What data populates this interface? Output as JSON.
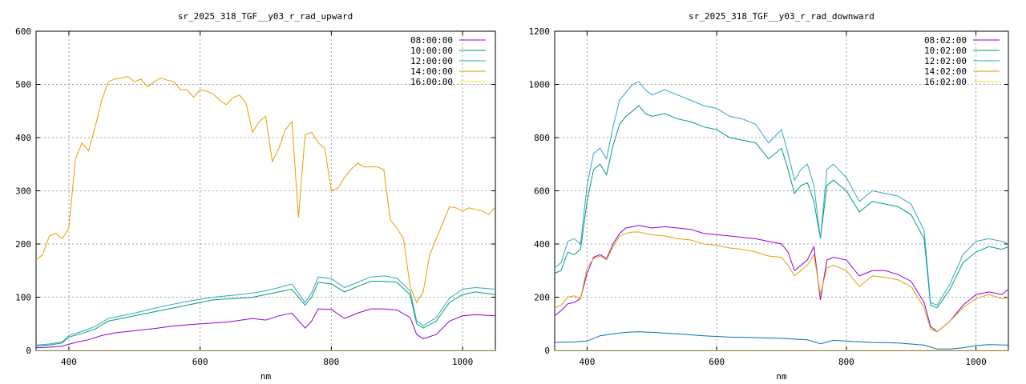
{
  "chart_data": [
    {
      "type": "line",
      "title": "sr_2025_318_TGF__y03_r_rad_upward",
      "xlabel": "nm",
      "ylabel": "",
      "xlim": [
        350,
        1050
      ],
      "ylim": [
        0,
        600
      ],
      "xticks": [
        400,
        600,
        800,
        1000
      ],
      "yticks": [
        0,
        100,
        200,
        300,
        400,
        500,
        600
      ],
      "grid": true,
      "legend_position": "top-right",
      "series": [
        {
          "name": "08:00:00",
          "color": "#9400d3",
          "x": [
            350,
            370,
            390,
            410,
            430,
            450,
            470,
            500,
            530,
            560,
            600,
            640,
            680,
            700,
            720,
            740,
            760,
            770,
            780,
            800,
            820,
            840,
            860,
            880,
            900,
            920,
            930,
            940,
            960,
            980,
            1000,
            1020,
            1050
          ],
          "y": [
            5,
            6,
            8,
            15,
            20,
            28,
            33,
            37,
            41,
            46,
            50,
            53,
            60,
            57,
            65,
            70,
            42,
            55,
            78,
            77,
            60,
            70,
            78,
            78,
            76,
            62,
            30,
            22,
            30,
            55,
            65,
            67,
            65
          ]
        },
        {
          "name": "10:00:00",
          "color": "#009e73",
          "x": [
            350,
            370,
            390,
            400,
            420,
            440,
            460,
            500,
            540,
            580,
            620,
            660,
            680,
            700,
            720,
            740,
            760,
            770,
            780,
            800,
            820,
            840,
            860,
            880,
            900,
            920,
            930,
            940,
            960,
            980,
            1000,
            1020,
            1050
          ],
          "y": [
            8,
            10,
            14,
            25,
            32,
            40,
            55,
            65,
            75,
            85,
            95,
            98,
            100,
            105,
            110,
            115,
            85,
            100,
            128,
            125,
            110,
            120,
            130,
            130,
            128,
            105,
            50,
            42,
            55,
            90,
            105,
            110,
            105
          ]
        },
        {
          "name": "12:00:00",
          "color": "#35a5c7",
          "x": [
            350,
            370,
            390,
            400,
            420,
            440,
            460,
            500,
            540,
            580,
            620,
            660,
            680,
            700,
            720,
            740,
            760,
            770,
            780,
            800,
            820,
            840,
            860,
            880,
            900,
            920,
            930,
            940,
            960,
            980,
            1000,
            1020,
            1050
          ],
          "y": [
            10,
            12,
            16,
            28,
            36,
            45,
            60,
            70,
            82,
            92,
            100,
            105,
            108,
            112,
            118,
            125,
            90,
            108,
            138,
            135,
            118,
            128,
            138,
            140,
            136,
            112,
            56,
            46,
            62,
            98,
            115,
            118,
            115
          ]
        },
        {
          "name": "14:00:00",
          "color": "#e69f00",
          "x": [
            350,
            360,
            370,
            380,
            390,
            400,
            410,
            420,
            430,
            440,
            450,
            460,
            470,
            480,
            490,
            500,
            510,
            520,
            530,
            540,
            550,
            560,
            570,
            580,
            590,
            600,
            610,
            620,
            630,
            640,
            650,
            660,
            670,
            680,
            690,
            700,
            710,
            720,
            730,
            740,
            750,
            760,
            770,
            780,
            790,
            800,
            810,
            820,
            830,
            840,
            850,
            860,
            870,
            880,
            890,
            900,
            910,
            920,
            930,
            940,
            950,
            960,
            970,
            980,
            990,
            1000,
            1010,
            1020,
            1030,
            1040,
            1050
          ],
          "y": [
            170,
            180,
            215,
            220,
            210,
            230,
            360,
            390,
            375,
            420,
            470,
            505,
            510,
            512,
            515,
            505,
            510,
            495,
            505,
            512,
            508,
            505,
            490,
            490,
            476,
            490,
            487,
            482,
            470,
            462,
            475,
            480,
            465,
            410,
            430,
            440,
            355,
            380,
            415,
            430,
            250,
            405,
            410,
            390,
            380,
            300,
            305,
            325,
            340,
            352,
            345,
            345,
            345,
            340,
            245,
            230,
            210,
            120,
            90,
            110,
            180,
            210,
            240,
            270,
            268,
            262,
            268,
            265,
            262,
            255,
            270
          ]
        },
        {
          "name": "16:00:00",
          "color": "#f0e442",
          "x": [
            350,
            1050
          ],
          "y": [
            0,
            0
          ]
        }
      ]
    },
    {
      "type": "line",
      "title": "sr_2025_318_TGF__y03_r_rad_downward",
      "xlabel": "nm",
      "ylabel": "",
      "xlim": [
        350,
        1050
      ],
      "ylim": [
        0,
        1200
      ],
      "xticks": [
        400,
        600,
        800,
        1000
      ],
      "yticks": [
        0,
        200,
        400,
        600,
        800,
        1000,
        1200
      ],
      "grid": true,
      "legend_position": "top-right",
      "series": [
        {
          "name": "08:02:00",
          "color": "#9400d3",
          "x": [
            350,
            360,
            370,
            380,
            390,
            400,
            410,
            420,
            430,
            440,
            450,
            460,
            470,
            480,
            490,
            500,
            520,
            540,
            560,
            580,
            600,
            620,
            640,
            660,
            680,
            700,
            710,
            720,
            740,
            750,
            760,
            770,
            780,
            800,
            820,
            840,
            860,
            880,
            900,
            920,
            930,
            940,
            960,
            980,
            1000,
            1020,
            1040,
            1050
          ],
          "y": [
            130,
            150,
            175,
            180,
            195,
            290,
            350,
            360,
            345,
            400,
            440,
            460,
            465,
            470,
            465,
            460,
            465,
            460,
            455,
            440,
            435,
            430,
            425,
            420,
            410,
            400,
            370,
            300,
            340,
            390,
            190,
            340,
            350,
            340,
            280,
            300,
            300,
            285,
            260,
            180,
            90,
            70,
            110,
            170,
            210,
            220,
            210,
            230
          ]
        },
        {
          "name": "10:02:00",
          "color": "#009e73",
          "x": [
            350,
            360,
            370,
            380,
            390,
            400,
            410,
            420,
            430,
            440,
            450,
            460,
            470,
            480,
            490,
            500,
            520,
            540,
            560,
            580,
            600,
            620,
            640,
            660,
            680,
            700,
            710,
            720,
            730,
            740,
            750,
            760,
            770,
            780,
            800,
            820,
            840,
            860,
            880,
            900,
            920,
            930,
            940,
            960,
            980,
            1000,
            1020,
            1040,
            1050
          ],
          "y": [
            290,
            300,
            370,
            360,
            380,
            560,
            680,
            700,
            660,
            770,
            850,
            880,
            900,
            920,
            890,
            880,
            890,
            870,
            860,
            840,
            830,
            800,
            790,
            780,
            720,
            760,
            680,
            590,
            620,
            630,
            560,
            420,
            620,
            640,
            600,
            520,
            560,
            550,
            540,
            510,
            420,
            170,
            160,
            230,
            330,
            370,
            390,
            380,
            390
          ]
        },
        {
          "name": "12:02:00",
          "color": "#35a5c7",
          "x": [
            350,
            360,
            370,
            380,
            390,
            400,
            410,
            420,
            430,
            440,
            450,
            460,
            470,
            480,
            490,
            500,
            520,
            540,
            560,
            580,
            600,
            620,
            640,
            660,
            680,
            700,
            710,
            720,
            730,
            740,
            750,
            760,
            770,
            780,
            800,
            820,
            840,
            860,
            880,
            900,
            920,
            930,
            940,
            960,
            980,
            1000,
            1020,
            1040,
            1050
          ],
          "y": [
            310,
            330,
            410,
            420,
            400,
            620,
            740,
            760,
            720,
            840,
            940,
            970,
            1000,
            1010,
            980,
            960,
            980,
            960,
            940,
            920,
            910,
            880,
            870,
            850,
            780,
            830,
            740,
            640,
            680,
            700,
            620,
            420,
            680,
            700,
            650,
            560,
            600,
            590,
            580,
            550,
            450,
            180,
            170,
            250,
            360,
            410,
            420,
            410,
            400
          ]
        },
        {
          "name": "14:02:00",
          "color": "#e69f00",
          "x": [
            350,
            360,
            370,
            380,
            390,
            400,
            410,
            420,
            430,
            440,
            450,
            460,
            470,
            480,
            490,
            500,
            520,
            540,
            560,
            580,
            600,
            620,
            640,
            660,
            680,
            700,
            710,
            720,
            740,
            750,
            760,
            770,
            780,
            800,
            820,
            840,
            860,
            880,
            900,
            920,
            930,
            940,
            960,
            980,
            1000,
            1020,
            1040,
            1050
          ],
          "y": [
            160,
            170,
            200,
            205,
            195,
            310,
            345,
            355,
            340,
            390,
            430,
            440,
            445,
            445,
            440,
            435,
            430,
            420,
            415,
            400,
            395,
            385,
            380,
            370,
            355,
            350,
            320,
            280,
            320,
            360,
            210,
            310,
            320,
            300,
            240,
            280,
            275,
            265,
            240,
            160,
            80,
            70,
            110,
            160,
            195,
            210,
            195,
            200
          ]
        },
        {
          "name": "16:02:00",
          "color": "#f0e442",
          "x": [
            350,
            1050
          ],
          "y": [
            0,
            0
          ]
        },
        {
          "name": "",
          "color": "#0072b2",
          "x": [
            350,
            380,
            400,
            420,
            440,
            460,
            480,
            500,
            540,
            580,
            620,
            660,
            700,
            740,
            760,
            780,
            800,
            840,
            880,
            920,
            940,
            960,
            980,
            1000,
            1020,
            1050
          ],
          "y": [
            30,
            32,
            35,
            55,
            62,
            68,
            70,
            68,
            62,
            55,
            50,
            48,
            45,
            40,
            25,
            38,
            35,
            30,
            28,
            20,
            5,
            5,
            10,
            18,
            22,
            20
          ]
        }
      ]
    }
  ]
}
